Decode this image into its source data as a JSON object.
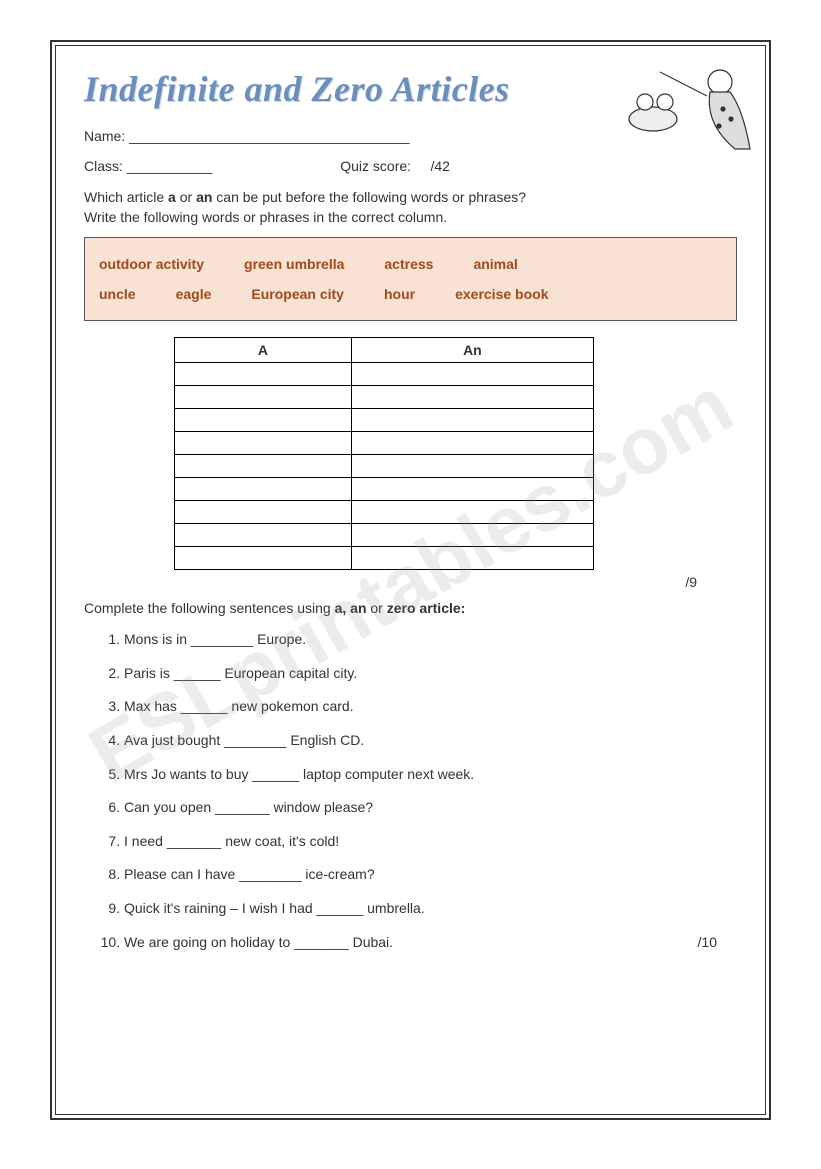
{
  "title": "Indefinite and Zero Articles",
  "name_label": "Name:",
  "class_label": "Class:",
  "quiz_score_label": "Quiz score:",
  "quiz_total": "/42",
  "instruction1_line1": "Which article <b>a</b> or <b>an</b> can be put before the following words or phrases?",
  "instruction1_line2": "Write the following words or phrases in the correct column.",
  "word_box": {
    "row1": [
      "outdoor activity",
      "green umbrella",
      "actress",
      "animal"
    ],
    "row2": [
      "uncle",
      "eagle",
      "European city",
      "hour",
      "exercise book"
    ]
  },
  "table": {
    "col_a": "A",
    "col_an": "An",
    "rows": 9
  },
  "score1": "/9",
  "instruction2": "Complete the following sentences using <b>a, an</b>  or  <b>zero article:</b>",
  "sentences": [
    "Mons is in ________ Europe.",
    "Paris is ______ European capital city.",
    "Max has ______ new pokemon card.",
    "Ava just bought ________ English CD.",
    "Mrs Jo wants to buy ______ laptop computer next week.",
    "Can you open _______ window please?",
    "I need _______ new coat, it's cold!",
    "Please can I have ________ ice-cream?",
    "Quick it's raining – I wish I had ______ umbrella.",
    "We are going on holiday to _______ Dubai."
  ],
  "score2": "/10",
  "watermark": "ESLprintables.com",
  "colors": {
    "title_color": "#6a8fbf",
    "word_box_bg": "#f7e2d4",
    "word_box_text": "#a34a1a",
    "border": "#333333"
  }
}
